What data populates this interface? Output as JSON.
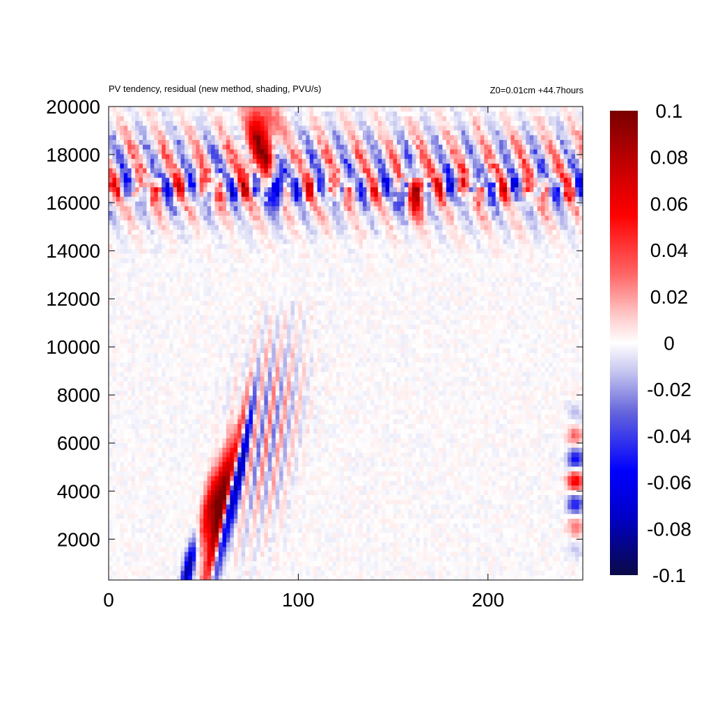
{
  "chart_data": {
    "type": "heatmap",
    "title": "PV tendency, residual (new method, shading, PVU/s)",
    "subtitle": "Z0=0.01cm   +44.7hours",
    "xlabel": "",
    "ylabel": "",
    "xlim": [
      0,
      250
    ],
    "ylim": [
      300,
      20000
    ],
    "x_ticks": [
      0,
      100,
      200
    ],
    "y_ticks": [
      2000,
      4000,
      6000,
      8000,
      10000,
      12000,
      14000,
      16000,
      18000,
      20000
    ],
    "zlim": [
      -0.1,
      0.1
    ],
    "colorbar_ticks": [
      0.1,
      0.08,
      0.06,
      0.04,
      0.02,
      0,
      -0.02,
      -0.04,
      -0.06,
      -0.08,
      -0.1
    ],
    "colormap": [
      {
        "v": -0.1,
        "color": "#0a0a46"
      },
      {
        "v": -0.075,
        "color": "#0000c8"
      },
      {
        "v": -0.055,
        "color": "#0000ff"
      },
      {
        "v": -0.03,
        "color": "#6464dc"
      },
      {
        "v": -0.012,
        "color": "#c8c8f0"
      },
      {
        "v": 0,
        "color": "#ffffff"
      },
      {
        "v": 0.012,
        "color": "#ffc8c8"
      },
      {
        "v": 0.03,
        "color": "#ff6464"
      },
      {
        "v": 0.055,
        "color": "#ff0000"
      },
      {
        "v": 0.075,
        "color": "#c80000"
      },
      {
        "v": 0.1,
        "color": "#780000"
      }
    ],
    "features": [
      {
        "region": "x 0-250, z 15000-20000",
        "description": "alternating positive/negative PV tendency band near tropopause, strongest at x 40-90 and 140-175"
      },
      {
        "region": "x 40-75, z 300-8000",
        "description": "tilted dipole of strong positive (red) and negative (blue) residual"
      },
      {
        "region": "x 240-250, z 1500-7500",
        "description": "weaker alternating dipole near right boundary"
      },
      {
        "region": "x 70-100, z 4000-11000",
        "description": "weak tilted alternating streaks"
      }
    ]
  }
}
